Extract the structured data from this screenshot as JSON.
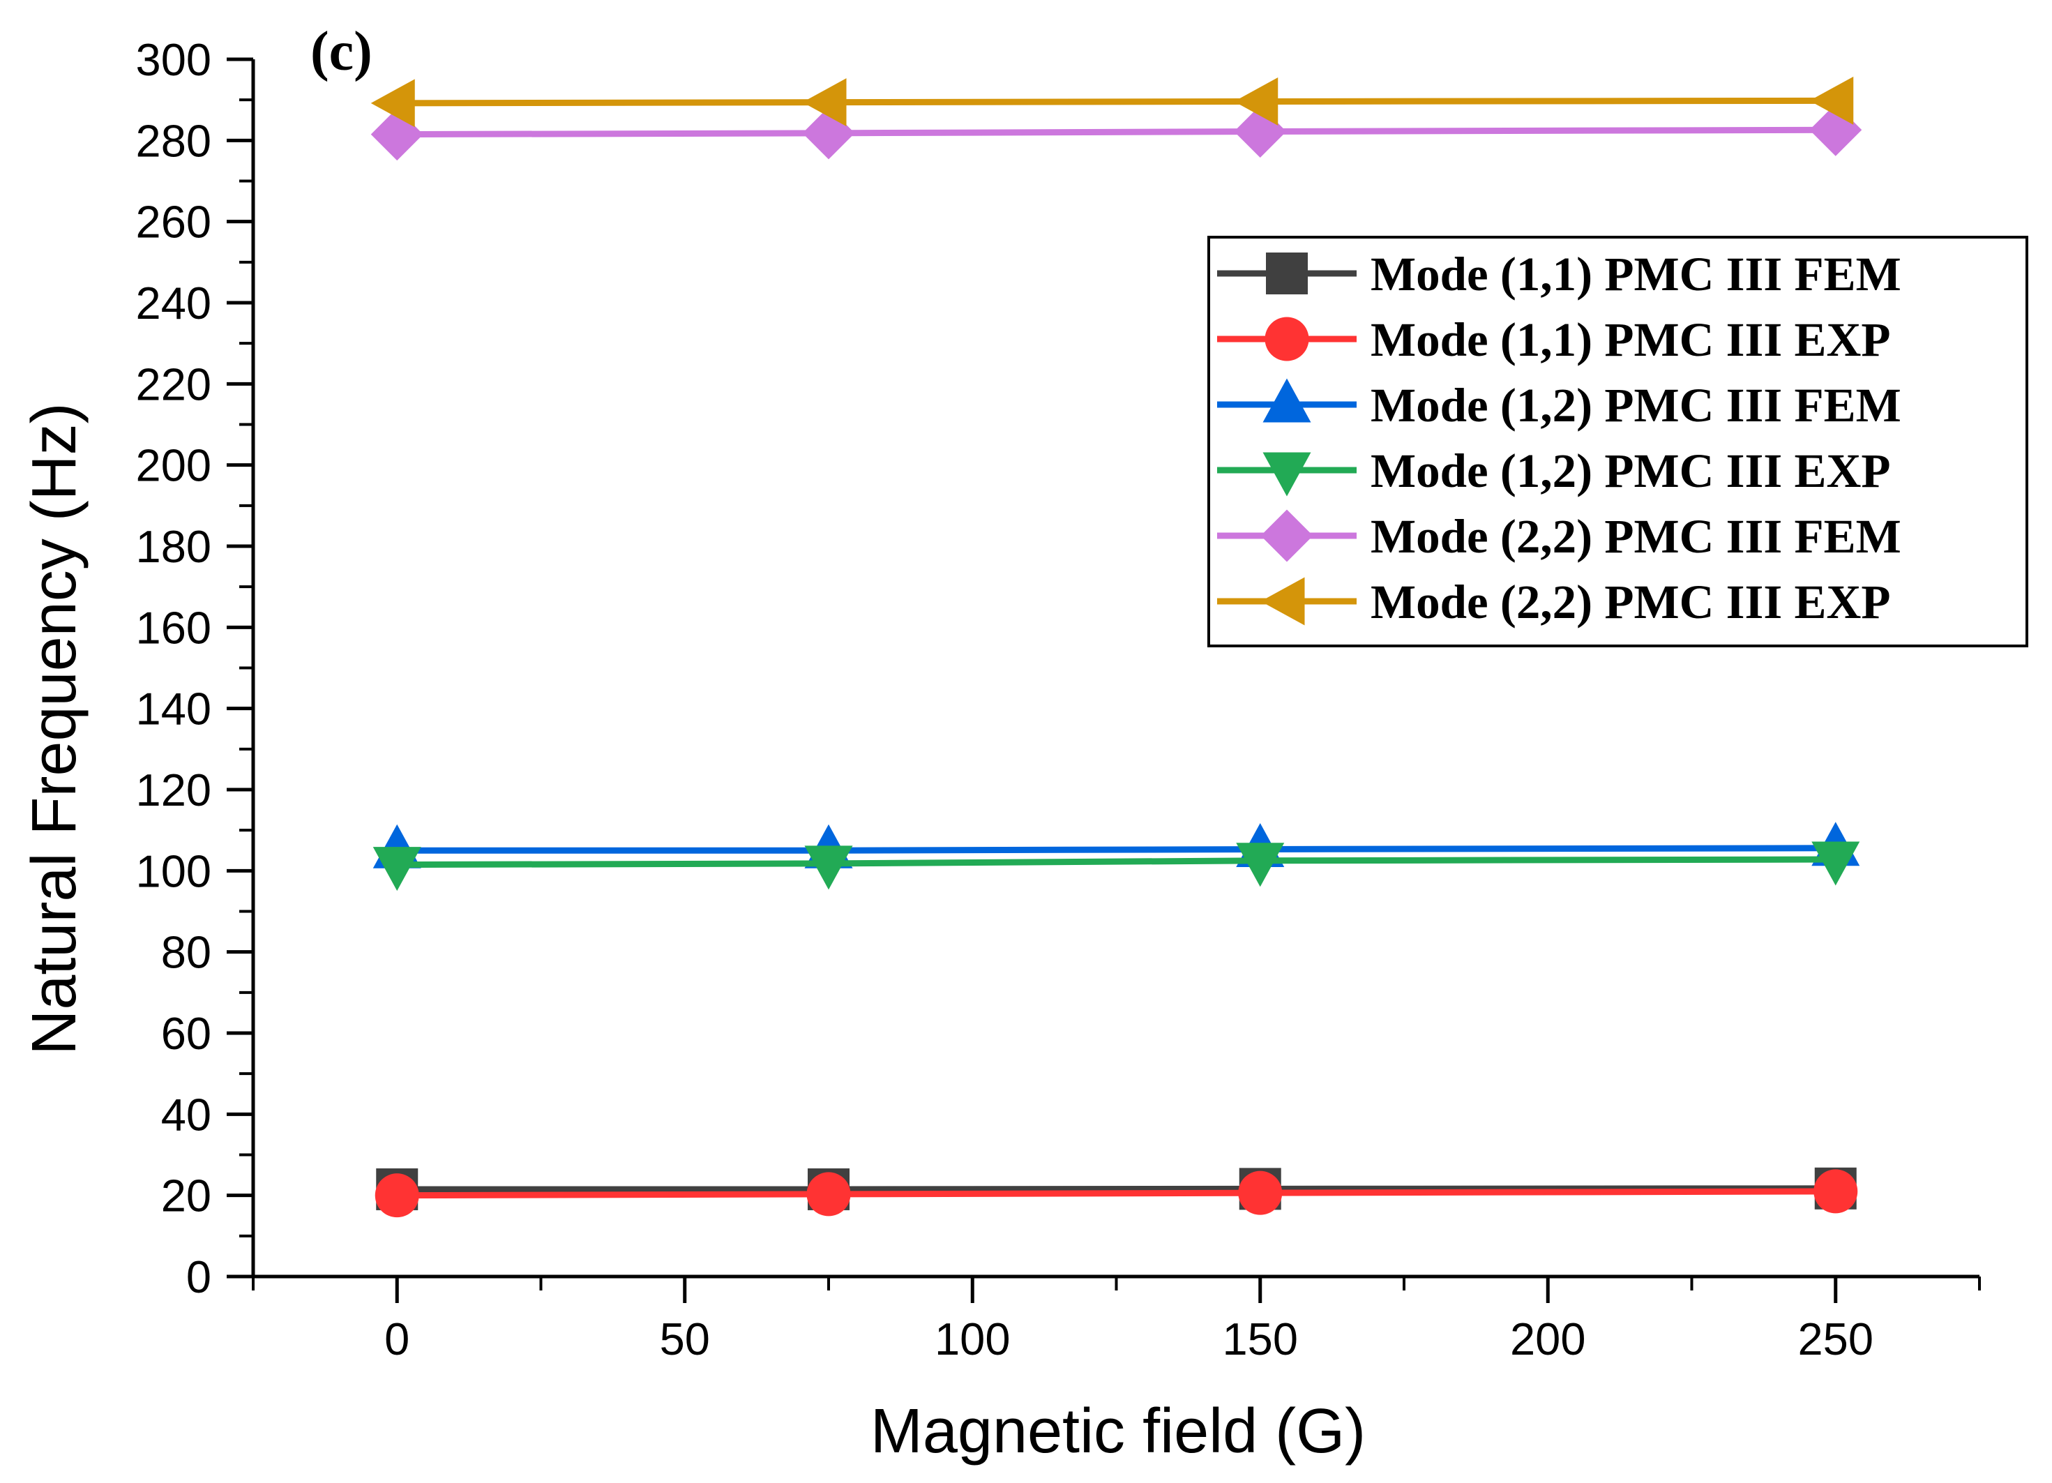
{
  "chart_data": {
    "type": "line",
    "panel_label": "(c)",
    "xlabel": "Magnetic field (G)",
    "ylabel": "Natural Frequency (Hz)",
    "xlim": [
      -25,
      275
    ],
    "ylim": [
      0,
      300
    ],
    "x_ticks": [
      0,
      50,
      100,
      150,
      200,
      250
    ],
    "y_ticks": [
      0,
      20,
      40,
      60,
      80,
      100,
      120,
      140,
      160,
      180,
      200,
      220,
      240,
      260,
      280,
      300
    ],
    "x": [
      0,
      75,
      150,
      250
    ],
    "legend_position": "upper-right",
    "series": [
      {
        "name": "Mode (1,1) PMC III FEM",
        "marker": "square",
        "color": "#404040",
        "values": [
          21.5,
          21.5,
          21.6,
          21.7
        ]
      },
      {
        "name": "Mode (1,1) PMC III EXP",
        "marker": "circle",
        "color": "#ff3333",
        "values": [
          20.0,
          20.3,
          20.6,
          21.0
        ]
      },
      {
        "name": "Mode (1,2) PMC III FEM",
        "marker": "triangle-up",
        "color": "#0066dd",
        "values": [
          105.0,
          105.0,
          105.3,
          105.6
        ]
      },
      {
        "name": "Mode (1,2) PMC III EXP",
        "marker": "triangle-down",
        "color": "#22aa55",
        "values": [
          101.5,
          101.8,
          102.5,
          102.8
        ]
      },
      {
        "name": "Mode (2,2) PMC III FEM",
        "marker": "diamond",
        "color": "#cc77dd",
        "values": [
          281.5,
          281.8,
          282.2,
          282.6
        ]
      },
      {
        "name": "Mode (2,2) PMC III EXP",
        "marker": "triangle-left",
        "color": "#d4950a",
        "values": [
          289.2,
          289.4,
          289.6,
          289.8
        ]
      }
    ]
  }
}
